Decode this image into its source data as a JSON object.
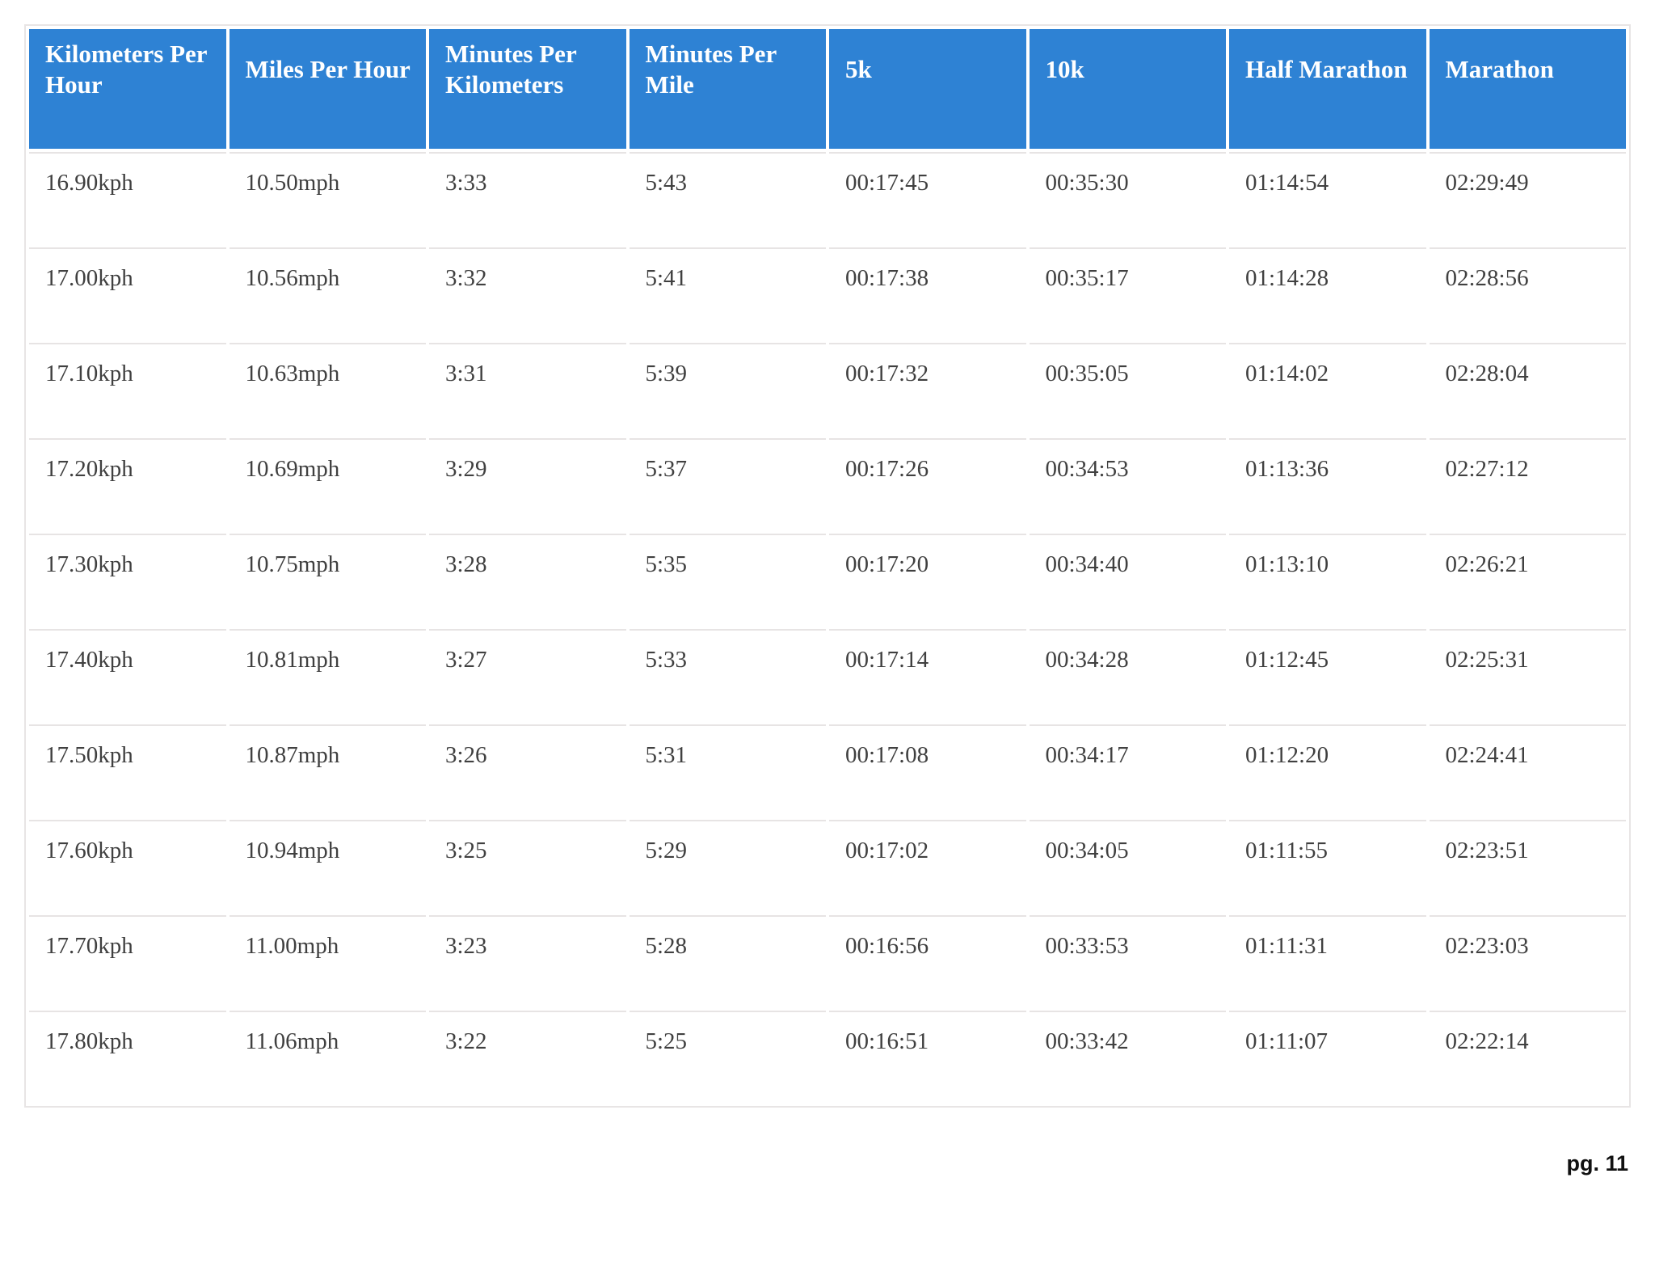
{
  "page": {
    "footer": "pg. 11"
  },
  "table": {
    "headers": [
      "Kilometers Per Hour",
      "Miles Per Hour",
      "Minutes Per Kilometers",
      "Minutes Per Mile",
      "5k",
      "10k",
      "Half Marathon",
      "Marathon"
    ],
    "rows": [
      [
        "16.90kph",
        "10.50mph",
        "3:33",
        "5:43",
        "00:17:45",
        "00:35:30",
        "01:14:54",
        "02:29:49"
      ],
      [
        "17.00kph",
        "10.56mph",
        "3:32",
        "5:41",
        "00:17:38",
        "00:35:17",
        "01:14:28",
        "02:28:56"
      ],
      [
        "17.10kph",
        "10.63mph",
        "3:31",
        "5:39",
        "00:17:32",
        "00:35:05",
        "01:14:02",
        "02:28:04"
      ],
      [
        "17.20kph",
        "10.69mph",
        "3:29",
        "5:37",
        "00:17:26",
        "00:34:53",
        "01:13:36",
        "02:27:12"
      ],
      [
        "17.30kph",
        "10.75mph",
        "3:28",
        "5:35",
        "00:17:20",
        "00:34:40",
        "01:13:10",
        "02:26:21"
      ],
      [
        "17.40kph",
        "10.81mph",
        "3:27",
        "5:33",
        "00:17:14",
        "00:34:28",
        "01:12:45",
        "02:25:31"
      ],
      [
        "17.50kph",
        "10.87mph",
        "3:26",
        "5:31",
        "00:17:08",
        "00:34:17",
        "01:12:20",
        "02:24:41"
      ],
      [
        "17.60kph",
        "10.94mph",
        "3:25",
        "5:29",
        "00:17:02",
        "00:34:05",
        "01:11:55",
        "02:23:51"
      ],
      [
        "17.70kph",
        "11.00mph",
        "3:23",
        "5:28",
        "00:16:56",
        "00:33:53",
        "01:11:31",
        "02:23:03"
      ],
      [
        "17.80kph",
        "11.06mph",
        "3:22",
        "5:25",
        "00:16:51",
        "00:33:42",
        "01:11:07",
        "02:22:14"
      ]
    ],
    "colors": {
      "header_bg": "#2e82d4",
      "header_text": "#ffffff",
      "body_text": "#404040",
      "border": "#e7e4e4"
    }
  }
}
